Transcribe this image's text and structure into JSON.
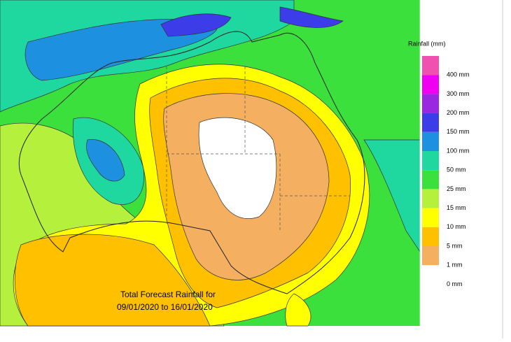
{
  "legend": {
    "title": "Rainfall (mm)",
    "items": [
      {
        "label": "400 mm",
        "color": "#f050b0"
      },
      {
        "label": "300 mm",
        "color": "#f000f0"
      },
      {
        "label": "200 mm",
        "color": "#9a28e0"
      },
      {
        "label": "150 mm",
        "color": "#3c3ce8"
      },
      {
        "label": "100 mm",
        "color": "#1e90e0"
      },
      {
        "label": "50 mm",
        "color": "#1ed8a0"
      },
      {
        "label": "25 mm",
        "color": "#3ce03c"
      },
      {
        "label": "15 mm",
        "color": "#b4f03c"
      },
      {
        "label": "10 mm",
        "color": "#ffff00"
      },
      {
        "label": "5 mm",
        "color": "#ffc000"
      },
      {
        "label": "1 mm",
        "color": "#f4b060"
      },
      {
        "label": "0 mm",
        "color": "#ffffff"
      }
    ]
  },
  "caption": {
    "line1": "Total Forecast Rainfall for",
    "line2": "09/01/2020 to 16/01/2020"
  }
}
